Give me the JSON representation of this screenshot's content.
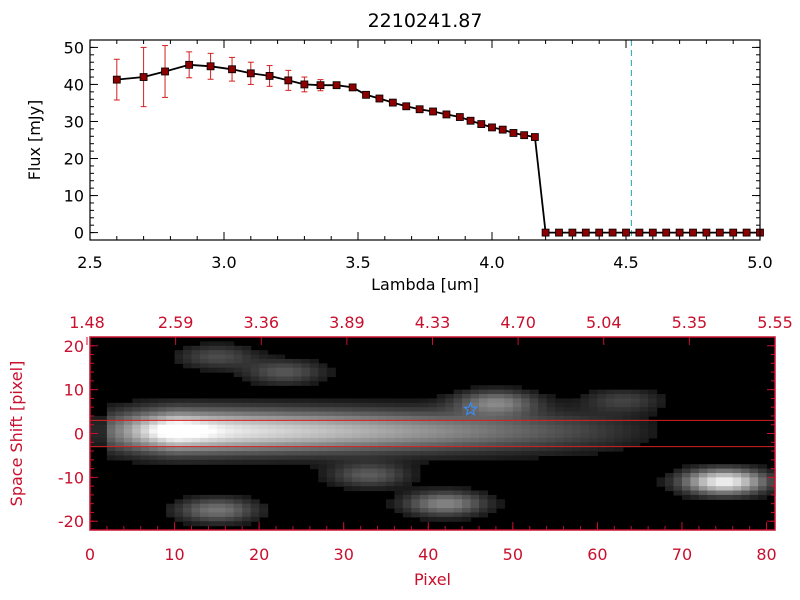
{
  "chart_data": [
    {
      "type": "line",
      "title": "2210241.87",
      "xlabel": "Lambda [um]",
      "ylabel": "Flux [mJy]",
      "xlim": [
        2.5,
        5.0
      ],
      "ylim": [
        -2,
        52
      ],
      "xticks": [
        "2.5",
        "3.0",
        "3.5",
        "4.0",
        "4.5",
        "5.0"
      ],
      "yticks": [
        "0",
        "10",
        "20",
        "30",
        "40",
        "50"
      ],
      "vline_x": 4.52,
      "colors": {
        "line": "#000000",
        "marker": "#8b0000",
        "error": "#d42020",
        "vline": "#20a0b0"
      },
      "series": [
        {
          "x": [
            2.6,
            2.7,
            2.78,
            2.87,
            2.95,
            3.03,
            3.1,
            3.17,
            3.24,
            3.3,
            3.36,
            3.42,
            3.48,
            3.53,
            3.58,
            3.63,
            3.68,
            3.73,
            3.78,
            3.83,
            3.88,
            3.92,
            3.96,
            4.0,
            4.04,
            4.08,
            4.12,
            4.16,
            4.2,
            4.25,
            4.3,
            4.35,
            4.4,
            4.45,
            4.5,
            4.55,
            4.6,
            4.65,
            4.7,
            4.75,
            4.8,
            4.85,
            4.9,
            4.95,
            5.0
          ],
          "y": [
            41.3,
            42.0,
            43.5,
            45.3,
            44.9,
            44.1,
            43.0,
            42.3,
            41.1,
            40.0,
            39.8,
            39.8,
            39.2,
            37.2,
            36.2,
            35.1,
            34.1,
            33.3,
            32.7,
            31.9,
            31.2,
            30.2,
            29.3,
            28.4,
            27.8,
            26.9,
            26.3,
            25.8,
            0.0,
            0.0,
            0.0,
            0.0,
            0.0,
            0.0,
            0.0,
            0.0,
            0.0,
            0.0,
            0.0,
            0.0,
            0.0,
            0.0,
            0.0,
            0.0,
            0.0
          ],
          "yerr": [
            5.5,
            8.0,
            7.0,
            3.5,
            3.5,
            3.2,
            3.0,
            2.8,
            2.7,
            2.0,
            1.5,
            0.7,
            0.6,
            0.5,
            0.5,
            0.4,
            0.4,
            0.4,
            0.4,
            0.3,
            0.3,
            0.3,
            0.3,
            0.3,
            0.3,
            0.3,
            0.3,
            0.3,
            0.0,
            0.0,
            0.0,
            0.0,
            0.0,
            0.0,
            0.0,
            0.0,
            0.0,
            0.0,
            0.0,
            0.0,
            0.0,
            0.0,
            0.0,
            0.0,
            0.0
          ]
        }
      ]
    },
    {
      "type": "heatmap",
      "xlabel": "Pixel",
      "ylabel": "Space Shift [pixel]",
      "xlim": [
        0,
        81
      ],
      "ylim": [
        -22,
        22
      ],
      "xticks": [
        "0",
        "10",
        "20",
        "30",
        "40",
        "50",
        "60",
        "70",
        "80"
      ],
      "yticks": [
        "-20",
        "-10",
        "0",
        "10",
        "20"
      ],
      "top_axis_ticks": [
        "1.48",
        "2.59",
        "3.36",
        "3.89",
        "4.33",
        "4.70",
        "5.04",
        "5.35",
        "5.55"
      ],
      "aperture_lines_y": [
        3,
        -3
      ],
      "star_marker": {
        "x": 45,
        "y": 5.5
      },
      "colors": {
        "axis": "#c8102e",
        "aperture": "#d42020",
        "star": "#3a8cf0",
        "background": "#000000"
      },
      "sources": [
        {
          "x": 10,
          "y": 0.8,
          "peak": 1.0
        },
        {
          "x": 48,
          "y": 7,
          "peak": 0.42
        },
        {
          "x": 75,
          "y": -11,
          "peak": 0.95
        },
        {
          "x": 42,
          "y": -16,
          "peak": 0.45
        },
        {
          "x": 15,
          "y": -17.5,
          "peak": 0.38
        },
        {
          "x": 33,
          "y": -9.5,
          "peak": 0.28
        },
        {
          "x": 23,
          "y": 14,
          "peak": 0.26
        },
        {
          "x": 15,
          "y": 17.5,
          "peak": 0.22
        },
        {
          "x": 63,
          "y": 7.5,
          "peak": 0.18
        }
      ]
    }
  ]
}
